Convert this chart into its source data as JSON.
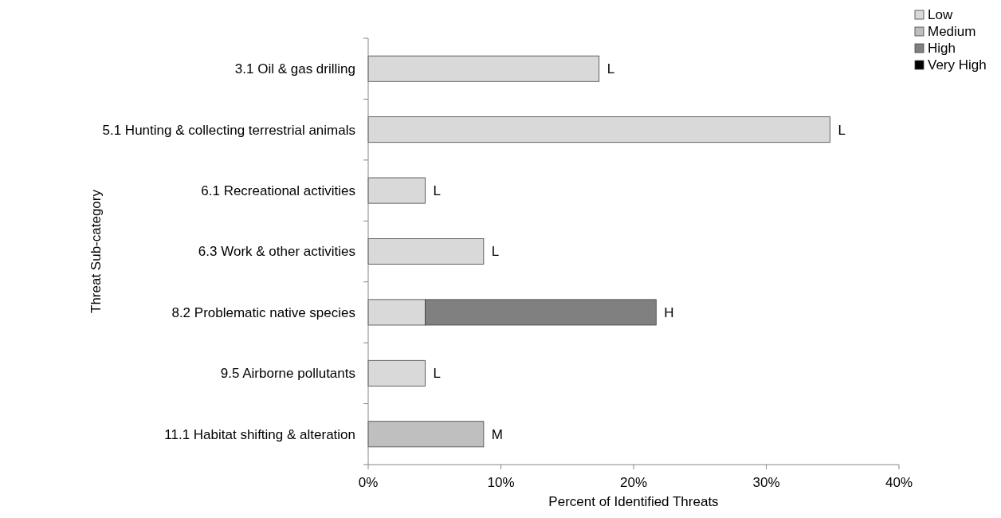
{
  "chart_data": {
    "type": "bar",
    "orientation": "horizontal",
    "stacked": true,
    "xlabel": "Percent of Identified Threats",
    "ylabel": "Threat Sub-category",
    "categories": [
      "3.1 Oil & gas drilling",
      "5.1 Hunting & collecting terrestrial animals",
      "6.1 Recreational activities",
      "6.3 Work & other activities",
      "8.2 Problematic native species",
      "9.5 Airborne pollutants",
      "11.1 Habitat shifting & alteration"
    ],
    "series": [
      {
        "name": "Low",
        "color": "#d9d9d9",
        "values": [
          17.4,
          34.8,
          4.3,
          8.7,
          4.3,
          4.3,
          null
        ],
        "value_labels": [
          "L",
          "L",
          "L",
          "L",
          null,
          "L",
          null
        ]
      },
      {
        "name": "Medium",
        "color": "#bfbfbf",
        "values": [
          null,
          null,
          null,
          null,
          null,
          null,
          8.7
        ],
        "value_labels": [
          null,
          null,
          null,
          null,
          null,
          null,
          "M"
        ]
      },
      {
        "name": "High",
        "color": "#808080",
        "values": [
          null,
          null,
          null,
          null,
          17.4,
          null,
          null
        ],
        "value_labels": [
          null,
          null,
          null,
          null,
          "H",
          null,
          null
        ]
      },
      {
        "name": "Very High",
        "color": "#000000",
        "values": [
          null,
          null,
          null,
          null,
          null,
          null,
          null
        ]
      }
    ],
    "xlim": [
      0,
      40
    ],
    "xticks": [
      {
        "value": 0,
        "label": "0%"
      },
      {
        "value": 10,
        "label": "10%"
      },
      {
        "value": 20,
        "label": "20%"
      },
      {
        "value": 30,
        "label": "30%"
      },
      {
        "value": 40,
        "label": "40%"
      }
    ],
    "grid": false,
    "legend": "top right"
  }
}
